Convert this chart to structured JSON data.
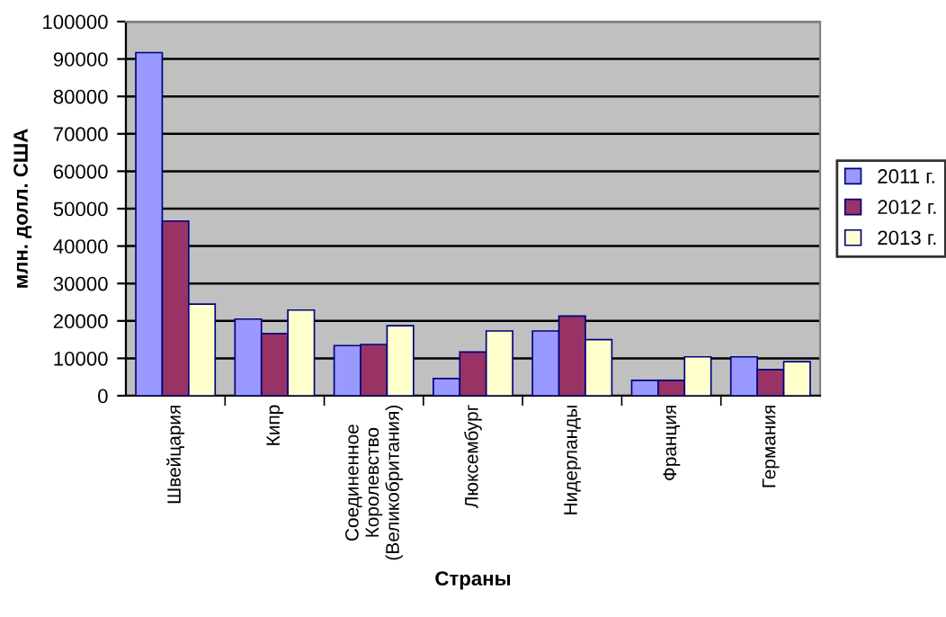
{
  "chart_data": {
    "type": "bar",
    "categories": [
      "Швейцария",
      "Кипр",
      "Соединенное\nКоролевство\n(Великобритания)",
      "Люксембург",
      "Нидерланды",
      "Франция",
      "Германия"
    ],
    "series": [
      {
        "name": "2011 г.",
        "color": "#9999ff",
        "values": [
          91700,
          20500,
          13400,
          4600,
          17300,
          4100,
          10400
        ]
      },
      {
        "name": "2012 г.",
        "color": "#993366",
        "values": [
          46700,
          16600,
          13700,
          11700,
          21300,
          4100,
          7000
        ]
      },
      {
        "name": "2013 г.",
        "color": "#ffffcc",
        "values": [
          24500,
          22900,
          18700,
          17300,
          15000,
          10400,
          9100
        ]
      }
    ],
    "xlabel": "Страны",
    "ylabel": "млн. долл. США",
    "ylim": [
      0,
      100000
    ],
    "yticks": [
      0,
      10000,
      20000,
      30000,
      40000,
      50000,
      60000,
      70000,
      80000,
      90000,
      100000
    ],
    "grid": "y",
    "legend": "right"
  }
}
